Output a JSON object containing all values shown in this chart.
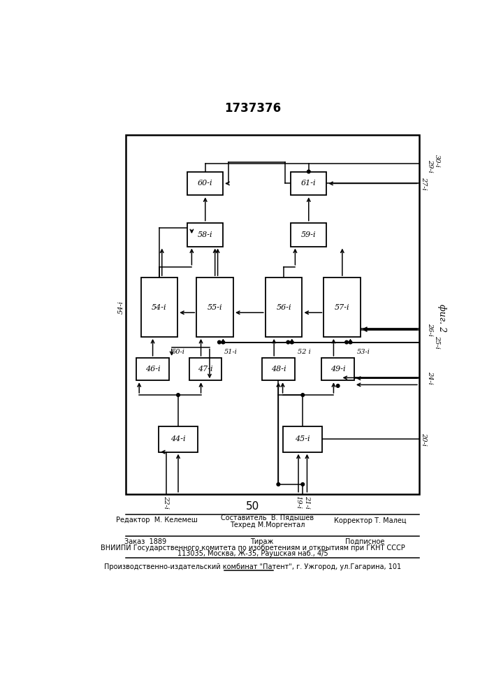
{
  "title": "1737376",
  "fig_label": "фиг. 2",
  "page_number": "50",
  "bg_color": "#ffffff",
  "editor_line": "Редактор  М. Келемеш",
  "composer_line": "Составитель  В. Пядышев",
  "techred_line": "Техред М.Моргентал",
  "corrector_line": "Корректор Т. Малец",
  "order_line": "Заказ  1889",
  "tirazh_line": "Тираж",
  "podpisnoe_line": "Подписное",
  "vniipи_line": "ВНИИПИ Государственного комитета по изобретениям и открытиям при ГКНТ СССР",
  "address_line": "113035, Москва, Ж-35, Раушская наб., 4/5",
  "factory_line": "Производственно-издательский комбинат \"Патент\", г. Ужгород, ул.Гагарина, 101"
}
